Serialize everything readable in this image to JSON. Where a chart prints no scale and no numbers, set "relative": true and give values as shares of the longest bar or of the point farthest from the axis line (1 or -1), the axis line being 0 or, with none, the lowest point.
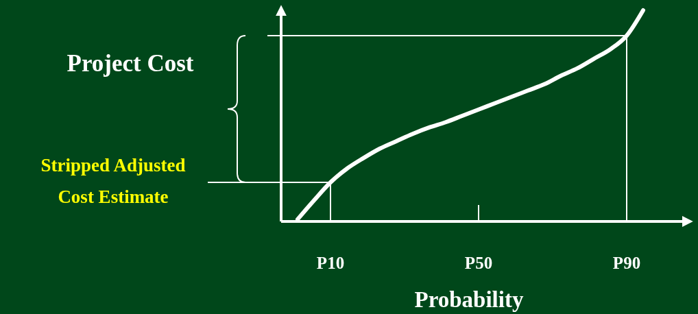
{
  "chart_data": {
    "type": "line",
    "relative": true,
    "xlabel": "Probability",
    "ylabel": "Project Cost",
    "categories": [
      null,
      null,
      null,
      "P10",
      null,
      null,
      null,
      null,
      null,
      null,
      null,
      null,
      "P50",
      null,
      null,
      null,
      null,
      null,
      null,
      null,
      null,
      "P90",
      null,
      null,
      null,
      null
    ],
    "series": [
      {
        "color": "#ffffff",
        "values": [
          null,
          0.01,
          0.1,
          0.185,
          0.25,
          0.3,
          0.345,
          0.38,
          0.415,
          0.445,
          0.47,
          0.5,
          0.53,
          0.56,
          0.59,
          0.62,
          0.65,
          0.69,
          0.725,
          0.77,
          0.815,
          0.88,
          1,
          null,
          null,
          null
        ]
      }
    ],
    "ref_lines": [
      {
        "axis": "y",
        "value": 0.185,
        "label": "Stripped Adjusted Cost Estimate",
        "color": "#ffffff"
      },
      {
        "axis": "y",
        "value": 0.88,
        "label": null,
        "color": "#ffffff"
      },
      {
        "axis": "x",
        "value": "P10",
        "label": null,
        "color": "#ffffff"
      },
      {
        "axis": "x",
        "value": "P90",
        "label": null,
        "color": "#ffffff"
      }
    ],
    "line_style": "solid"
  }
}
